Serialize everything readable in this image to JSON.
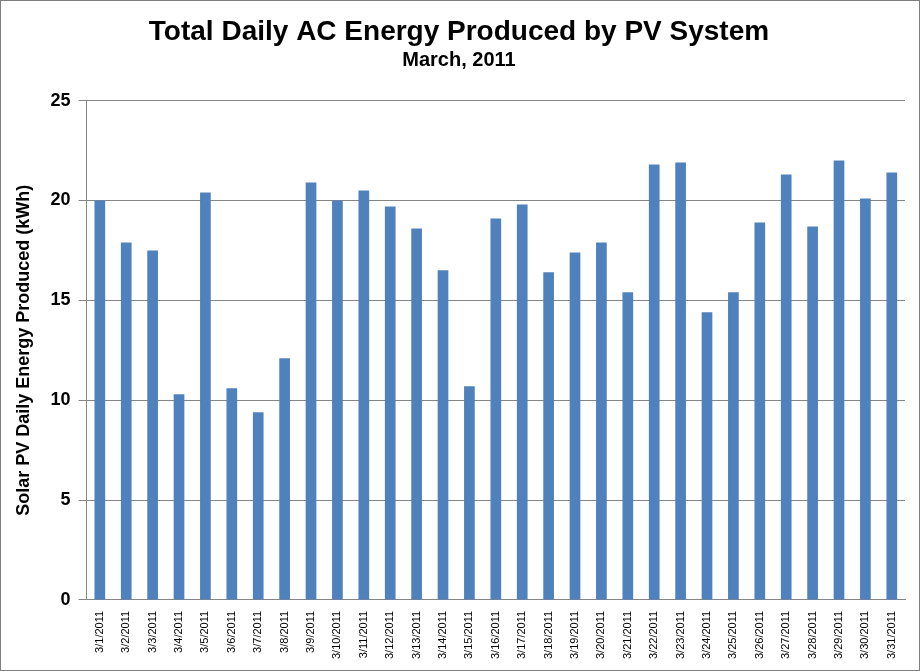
{
  "chart_data": {
    "type": "bar",
    "title": "Total Daily AC Energy Produced by PV System",
    "subtitle": "March, 2011",
    "y_label": "Solar PV Daily Energy Produced (kWh)",
    "categories": [
      "3/1/2011",
      "3/2/2011",
      "3/3/2011",
      "3/4/2011",
      "3/5/2011",
      "3/6/2011",
      "3/7/2011",
      "3/8/2011",
      "3/9/2011",
      "3/10/2011",
      "3/11/2011",
      "3/12/2011",
      "3/13/2011",
      "3/14/2011",
      "3/15/2011",
      "3/16/2011",
      "3/17/2011",
      "3/18/2011",
      "3/19/2011",
      "3/20/2011",
      "3/21/2011",
      "3/22/2011",
      "3/23/2011",
      "3/24/2011",
      "3/25/2011",
      "3/26/2011",
      "3/27/2011",
      "3/28/2011",
      "3/29/2011",
      "3/30/2011",
      "3/31/2011"
    ],
    "values": [
      20.0,
      17.9,
      17.5,
      10.3,
      20.4,
      10.6,
      9.4,
      12.1,
      20.9,
      20.0,
      20.5,
      19.7,
      18.6,
      16.5,
      10.7,
      19.1,
      19.8,
      16.4,
      17.4,
      17.9,
      15.4,
      21.8,
      21.9,
      14.4,
      15.4,
      18.9,
      21.3,
      18.7,
      22.0,
      20.1,
      21.4
    ],
    "color": "#4f81bd",
    "ylim": [
      0,
      25
    ],
    "yticks": [
      0,
      5,
      10,
      15,
      20,
      25
    ],
    "grid": true
  }
}
